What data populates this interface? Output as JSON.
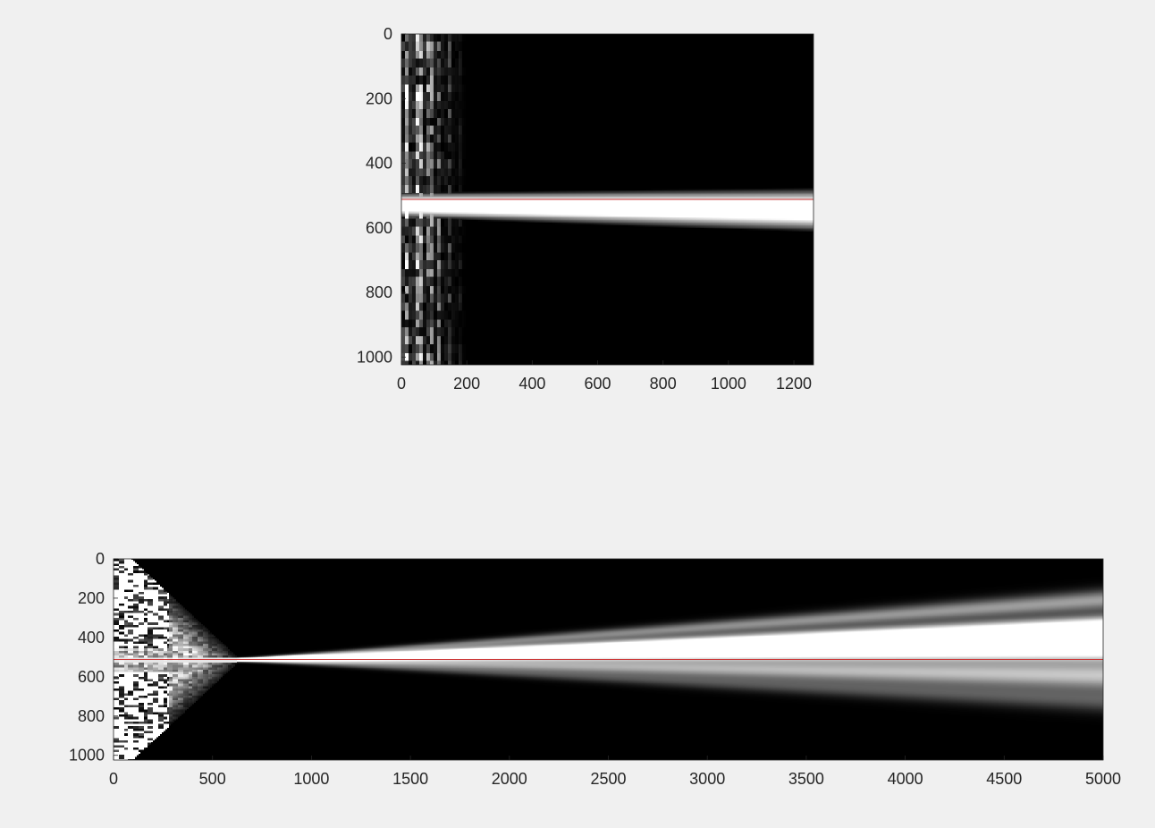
{
  "chart_data": [
    {
      "type": "heatmap",
      "colormap": "gray",
      "title": "",
      "xlabel": "",
      "ylabel": "",
      "xlim": [
        0,
        1260
      ],
      "ylim": [
        1024,
        0
      ],
      "y_direction": "reversed",
      "xticks": [
        0,
        200,
        400,
        600,
        800,
        1000,
        1200
      ],
      "yticks": [
        0,
        200,
        400,
        600,
        800,
        1000
      ],
      "grid": false,
      "legend": "none",
      "reference_line": {
        "y": 512,
        "color": "#cc3333"
      },
      "beam": {
        "center_start": 530,
        "center_end": 545,
        "halfwidth_start": 32,
        "halfwidth_end": 55
      },
      "near_field_x_end": 200
    },
    {
      "type": "heatmap",
      "colormap": "gray",
      "title": "",
      "xlabel": "",
      "ylabel": "",
      "xlim": [
        0,
        5000
      ],
      "ylim": [
        1024,
        0
      ],
      "y_direction": "reversed",
      "xticks": [
        0,
        500,
        1000,
        1500,
        2000,
        2500,
        3000,
        3500,
        4000,
        4500,
        5000
      ],
      "yticks": [
        0,
        200,
        400,
        600,
        800,
        1000
      ],
      "grid": false,
      "legend": "none",
      "reference_line": {
        "y": 512,
        "color": "#cc3333"
      },
      "focus": {
        "x": 600,
        "y": 515
      },
      "lobes": [
        {
          "y_end": 445,
          "halfwidth_end": 55,
          "intensity": 1.0
        },
        {
          "y_end": 340,
          "halfwidth_end": 40,
          "intensity": 0.85
        },
        {
          "y_end": 210,
          "halfwidth_end": 40,
          "intensity": 0.45
        },
        {
          "y_end": 595,
          "halfwidth_end": 55,
          "intensity": 0.55
        },
        {
          "y_end": 720,
          "halfwidth_end": 45,
          "intensity": 0.25
        }
      ],
      "near_field_x_end": 620
    }
  ]
}
